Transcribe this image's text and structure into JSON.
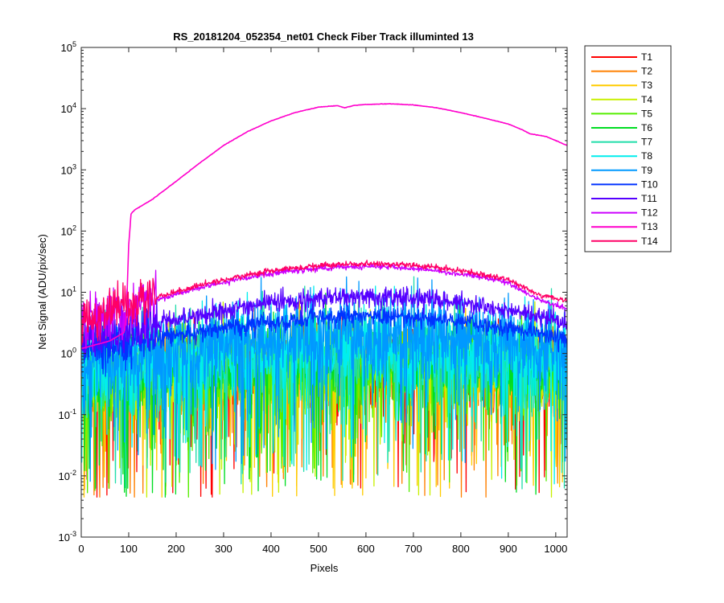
{
  "chart_data": {
    "type": "line",
    "title": "RS_20181204_052354_net01   Check Fiber     Track illuminted 13",
    "xlabel": "Pixels",
    "ylabel": "Net Signal (ADU/pix/sec)",
    "xlim": [
      0,
      1024
    ],
    "ylim": [
      0.001,
      100000
    ],
    "yscale": "log",
    "x_ticks": [
      0,
      100,
      200,
      300,
      400,
      500,
      600,
      700,
      800,
      900,
      1000
    ],
    "y_tick_base": "10",
    "y_tick_exponents": [
      "-3",
      "-2",
      "-1",
      "0",
      "1",
      "2",
      "3",
      "4",
      "5"
    ],
    "grid": false,
    "legend_position": "outside-right",
    "series": [
      {
        "name": "T1",
        "color": "#ff0000",
        "profile": {
          "kind": "noise",
          "peak": 0.55,
          "edge": 0.35
        }
      },
      {
        "name": "T2",
        "color": "#ff8000",
        "profile": {
          "kind": "noise",
          "peak": 0.55,
          "edge": 0.35
        }
      },
      {
        "name": "T3",
        "color": "#ffcc00",
        "profile": {
          "kind": "noise",
          "peak": 0.6,
          "edge": 0.35
        }
      },
      {
        "name": "T4",
        "color": "#c8f000",
        "profile": {
          "kind": "noise",
          "peak": 0.6,
          "edge": 0.35
        }
      },
      {
        "name": "T5",
        "color": "#55ee00",
        "profile": {
          "kind": "noise",
          "peak": 0.7,
          "edge": 0.4
        }
      },
      {
        "name": "T6",
        "color": "#00dd22",
        "profile": {
          "kind": "noise",
          "peak": 0.8,
          "edge": 0.4
        }
      },
      {
        "name": "T7",
        "color": "#22ddaa",
        "profile": {
          "kind": "noise",
          "peak": 1.0,
          "edge": 0.45
        }
      },
      {
        "name": "T8",
        "color": "#00eeee",
        "profile": {
          "kind": "noise",
          "peak": 1.3,
          "edge": 0.5
        }
      },
      {
        "name": "T9",
        "color": "#0099ff",
        "profile": {
          "kind": "noise",
          "peak": 2.0,
          "edge": 0.6
        }
      },
      {
        "name": "T10",
        "color": "#0033ff",
        "profile": {
          "kind": "smooth",
          "peak": 4.0,
          "edge": 0.9,
          "center": 600
        }
      },
      {
        "name": "T11",
        "color": "#5500ff",
        "profile": {
          "kind": "smooth",
          "peak": 8.5,
          "edge": 1.0,
          "center": 600
        }
      },
      {
        "name": "T12",
        "color": "#cc00ff",
        "profile": {
          "kind": "smooth",
          "peak": 26,
          "edge": 1.0,
          "center": 600,
          "end": 5.5
        }
      },
      {
        "name": "T13",
        "color": "#ff00cc",
        "profile": {
          "kind": "main",
          "points": [
            [
              0,
              1.2
            ],
            [
              60,
              1.6
            ],
            [
              90,
              2.2
            ],
            [
              95,
              4
            ],
            [
              100,
              60
            ],
            [
              105,
              190
            ],
            [
              112,
              220
            ],
            [
              150,
              330
            ],
            [
              200,
              650
            ],
            [
              250,
              1300
            ],
            [
              300,
              2500
            ],
            [
              350,
              4200
            ],
            [
              400,
              6300
            ],
            [
              450,
              8600
            ],
            [
              500,
              10600
            ],
            [
              540,
              11200
            ],
            [
              555,
              10300
            ],
            [
              575,
              11300
            ],
            [
              600,
              11700
            ],
            [
              650,
              12000
            ],
            [
              700,
              11500
            ],
            [
              750,
              10300
            ],
            [
              800,
              8600
            ],
            [
              850,
              7000
            ],
            [
              900,
              5600
            ],
            [
              930,
              4500
            ],
            [
              945,
              3900
            ],
            [
              980,
              3500
            ],
            [
              1024,
              2500
            ]
          ]
        }
      },
      {
        "name": "T14",
        "color": "#ff0066",
        "profile": {
          "kind": "smooth",
          "peak": 29,
          "edge": 1.0,
          "center": 600,
          "end": 7.5
        }
      }
    ]
  }
}
